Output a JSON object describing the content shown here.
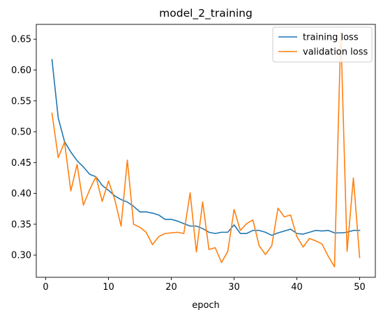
{
  "chart_data": {
    "type": "line",
    "title": "model_2_training",
    "xlabel": "epoch",
    "ylabel": "",
    "xlim": [
      -1.5,
      52.5
    ],
    "ylim": [
      0.264,
      0.674
    ],
    "xticks": [
      0,
      10,
      20,
      30,
      40,
      50
    ],
    "yticks": [
      0.3,
      0.35,
      0.4,
      0.45,
      0.5,
      0.55,
      0.6,
      0.65
    ],
    "ytick_labels": [
      "0.30",
      "0.35",
      "0.40",
      "0.45",
      "0.50",
      "0.55",
      "0.60",
      "0.65"
    ],
    "grid": false,
    "legend": "top-right",
    "x": [
      1,
      2,
      3,
      4,
      5,
      6,
      7,
      8,
      9,
      10,
      11,
      12,
      13,
      14,
      15,
      16,
      17,
      18,
      19,
      20,
      21,
      22,
      23,
      24,
      25,
      26,
      27,
      28,
      29,
      30,
      31,
      32,
      33,
      34,
      35,
      36,
      37,
      38,
      39,
      40,
      41,
      42,
      43,
      44,
      45,
      46,
      47,
      48,
      49,
      50
    ],
    "series": [
      {
        "name": "training loss",
        "color": "#1f77b4",
        "values": [
          0.617,
          0.522,
          0.484,
          0.467,
          0.453,
          0.443,
          0.431,
          0.427,
          0.413,
          0.405,
          0.396,
          0.39,
          0.386,
          0.379,
          0.37,
          0.37,
          0.368,
          0.365,
          0.358,
          0.358,
          0.355,
          0.351,
          0.347,
          0.347,
          0.343,
          0.337,
          0.335,
          0.337,
          0.337,
          0.349,
          0.335,
          0.335,
          0.34,
          0.34,
          0.337,
          0.332,
          0.336,
          0.339,
          0.342,
          0.335,
          0.334,
          0.337,
          0.34,
          0.339,
          0.34,
          0.336,
          0.336,
          0.337,
          0.34,
          0.34
        ]
      },
      {
        "name": "validation loss",
        "color": "#ff7f0e",
        "values": [
          0.53,
          0.458,
          0.483,
          0.404,
          0.447,
          0.381,
          0.406,
          0.427,
          0.387,
          0.42,
          0.39,
          0.347,
          0.454,
          0.35,
          0.345,
          0.337,
          0.317,
          0.33,
          0.335,
          0.336,
          0.337,
          0.335,
          0.401,
          0.305,
          0.386,
          0.309,
          0.312,
          0.288,
          0.306,
          0.374,
          0.34,
          0.351,
          0.357,
          0.315,
          0.301,
          0.315,
          0.376,
          0.362,
          0.365,
          0.33,
          0.313,
          0.327,
          0.323,
          0.318,
          0.298,
          0.281,
          0.662,
          0.306,
          0.425,
          0.296
        ]
      }
    ]
  }
}
